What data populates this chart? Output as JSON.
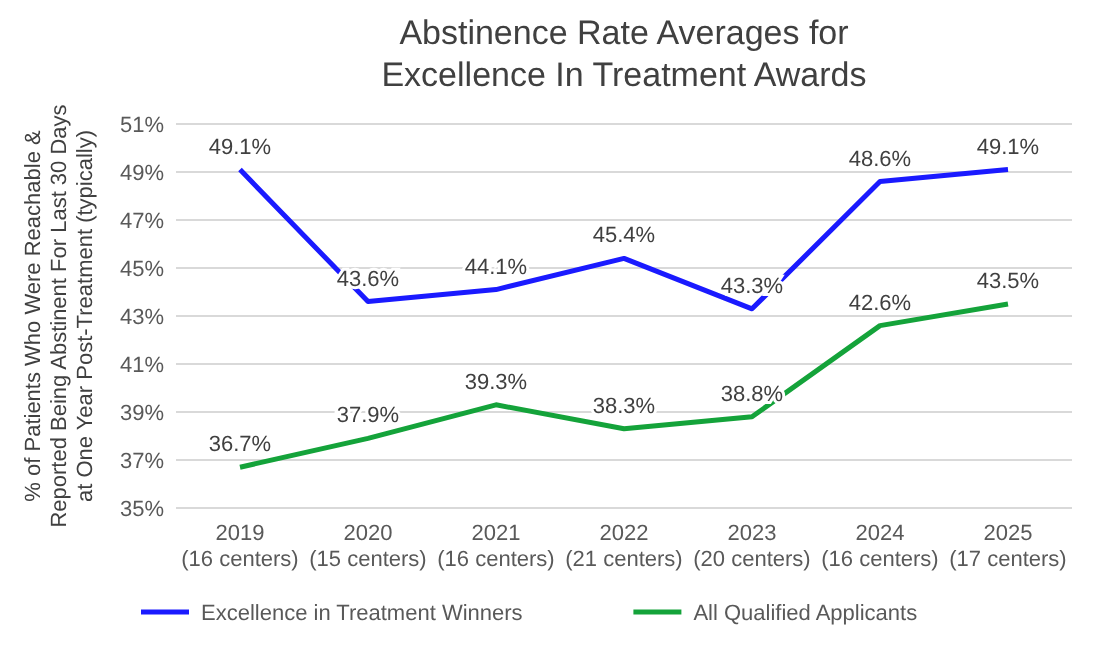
{
  "chart_data": {
    "type": "line",
    "title": "Abstinence Rate Averages for\nExcellence In Treatment Awards",
    "ylabel": "% of Patients Who Were Reachable &\nReported Being Abstinent For Last 30 Days\nat One Year Post-Treatment (typically)",
    "categories": [
      "2019\n(16 centers)",
      "2020\n(15 centers)",
      "2021\n(16 centers)",
      "2022\n(21 centers)",
      "2023\n(20 centers)",
      "2024\n(16 centers)",
      "2025\n(17 centers)"
    ],
    "series": [
      {
        "name": "Excellence in Treatment Winners",
        "color": "#1a1aff",
        "values": [
          49.1,
          43.6,
          44.1,
          45.4,
          43.3,
          48.6,
          49.1
        ],
        "value_labels": [
          "49.1%",
          "43.6%",
          "44.1%",
          "45.4%",
          "43.3%",
          "48.6%",
          "49.1%"
        ]
      },
      {
        "name": "All Qualified Applicants",
        "color": "#14a33a",
        "values": [
          36.7,
          37.9,
          39.3,
          38.3,
          38.8,
          42.6,
          43.5
        ],
        "value_labels": [
          "36.7%",
          "37.9%",
          "39.3%",
          "38.3%",
          "38.8%",
          "42.6%",
          "43.5%"
        ]
      }
    ],
    "ylim": [
      35,
      51
    ],
    "yticks": [
      {
        "value": 35,
        "label": "35%"
      },
      {
        "value": 37,
        "label": "37%"
      },
      {
        "value": 39,
        "label": "39%"
      },
      {
        "value": 41,
        "label": "41%"
      },
      {
        "value": 43,
        "label": "43%"
      },
      {
        "value": 45,
        "label": "45%"
      },
      {
        "value": 47,
        "label": "47%"
      },
      {
        "value": 49,
        "label": "49%"
      },
      {
        "value": 51,
        "label": "51%"
      }
    ],
    "grid": "y",
    "legend": "bottom",
    "marker": "none",
    "line_style": "solid"
  }
}
